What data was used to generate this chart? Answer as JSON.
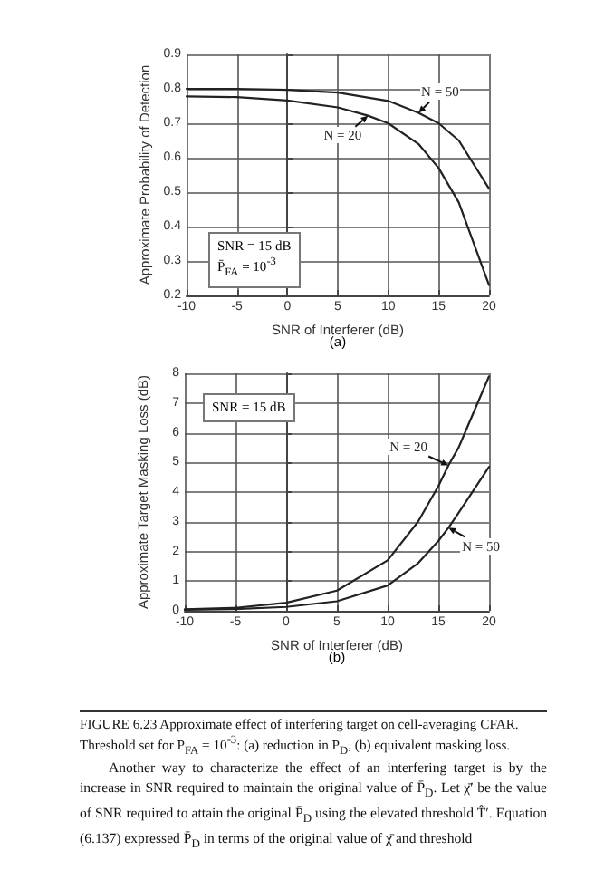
{
  "chart_data": [
    {
      "type": "line",
      "xlabel": "SNR of Interferer (dB)",
      "ylabel": "Approximate Probability of Detection",
      "xlim": [
        -10,
        20
      ],
      "xticks": [
        -10,
        -5,
        0,
        5,
        10,
        15,
        20
      ],
      "ylim": [
        0.2,
        0.9
      ],
      "yticks": [
        0.2,
        0.3,
        0.4,
        0.5,
        0.6,
        0.7,
        0.8,
        0.9
      ],
      "grid": true,
      "legend": false,
      "marker": "none",
      "line_style": "solid",
      "series": [
        {
          "name": "N = 20",
          "color": "#222222",
          "x": [
            -10,
            -5,
            0,
            5,
            8,
            10,
            13,
            15,
            17,
            20
          ],
          "values": [
            0.778,
            0.776,
            0.766,
            0.746,
            0.722,
            0.7,
            0.64,
            0.57,
            0.47,
            0.23
          ]
        },
        {
          "name": "N = 50",
          "color": "#222222",
          "x": [
            -10,
            -5,
            0,
            5,
            10,
            13,
            15,
            17,
            20
          ],
          "values": [
            0.8,
            0.8,
            0.797,
            0.789,
            0.765,
            0.73,
            0.7,
            0.65,
            0.51
          ]
        }
      ],
      "annotations": [
        "SNR = 15 dB",
        "P̄$_{FA}$ = 10$^{-3}$",
        "(a)"
      ]
    },
    {
      "type": "line",
      "xlabel": "SNR of Interferer (dB)",
      "ylabel": "Approximate Target Masking Loss (dB)",
      "xlim": [
        -10,
        20
      ],
      "xticks": [
        -10,
        -5,
        0,
        5,
        10,
        15,
        20
      ],
      "ylim": [
        0,
        8
      ],
      "yticks": [
        0,
        1,
        2,
        3,
        4,
        5,
        6,
        7,
        8
      ],
      "grid": true,
      "legend": false,
      "marker": "none",
      "line_style": "solid",
      "series": [
        {
          "name": "N = 20",
          "color": "#222222",
          "x": [
            -10,
            -5,
            0,
            5,
            10,
            13,
            15,
            16,
            17,
            20
          ],
          "values": [
            0.05,
            0.1,
            0.27,
            0.68,
            1.7,
            3.0,
            4.2,
            4.9,
            5.5,
            7.9
          ]
        },
        {
          "name": "N = 50",
          "color": "#222222",
          "x": [
            -10,
            -5,
            0,
            5,
            10,
            13,
            15,
            16,
            17,
            20
          ],
          "values": [
            0.03,
            0.06,
            0.13,
            0.32,
            0.85,
            1.6,
            2.35,
            2.8,
            3.3,
            4.85
          ]
        }
      ],
      "annotations": [
        "SNR = 15 dB",
        "(b)"
      ]
    },
    {
      "type": "other",
      "annotations": [
        "FIGURE 6.23  Approximate effect of interfering target on cell-averaging CFAR. Threshold set for P$_{FA}$ = 10$^{-3}$: (a) reduction in P$_{D}$, (b) equivalent masking loss.",
        "Another way to characterize the effect of an interfering target is by the increase in SNR required to maintain the original value of P̄$_{D}$. Let χ̄′ be the value of SNR required to attain the original P̄$_{D}$ using the elevated threshold T̂′. Equation (6.137) expressed P̄$_{D}$ in terms of the original value of χ̄ and threshold"
      ]
    }
  ]
}
